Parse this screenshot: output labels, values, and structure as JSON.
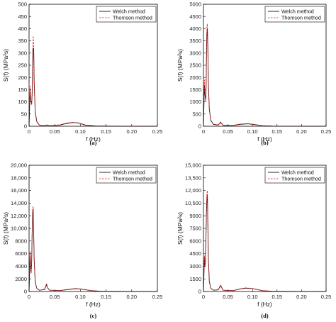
{
  "figure": {
    "colors": {
      "welch": "#111111",
      "thomson": "#e02020",
      "axis": "#000000"
    }
  },
  "chart_data": [
    {
      "type": "line",
      "caption": "(a)",
      "xlabel": "f (Hz)",
      "ylabel": "S(f) (MPa²s)",
      "xlim": [
        0,
        0.25
      ],
      "ylim": [
        0,
        500
      ],
      "xticks": [
        "0",
        "0.05",
        "0.10",
        "0.15",
        "0.20",
        "0.25"
      ],
      "yticks": [
        "0",
        "50",
        "100",
        "150",
        "200",
        "250",
        "300",
        "350",
        "400",
        "450",
        "500"
      ],
      "ytick_values": [
        0,
        50,
        100,
        150,
        200,
        250,
        300,
        350,
        400,
        450,
        500
      ],
      "legend": {
        "placement": "top-right",
        "entries": [
          "Welch method",
          "Thomson method"
        ]
      },
      "x": [
        0,
        0.002,
        0.003,
        0.004,
        0.005,
        0.006,
        0.007,
        0.008,
        0.009,
        0.01,
        0.012,
        0.015,
        0.02,
        0.03,
        0.035,
        0.04,
        0.06,
        0.075,
        0.085,
        0.095,
        0.11,
        0.13,
        0.18,
        0.25
      ],
      "series": [
        {
          "name": "Welch method",
          "style": "solid",
          "values": [
            0,
            150,
            110,
            100,
            90,
            130,
            250,
            320,
            320,
            180,
            60,
            20,
            5,
            2,
            5,
            2,
            5,
            12,
            15,
            14,
            5,
            1,
            0,
            0
          ]
        },
        {
          "name": "Thomson method",
          "style": "dashed",
          "values": [
            0,
            165,
            120,
            95,
            90,
            140,
            290,
            370,
            330,
            170,
            55,
            18,
            5,
            2,
            6,
            2,
            6,
            14,
            16,
            13,
            4,
            1,
            0,
            0
          ]
        }
      ]
    },
    {
      "type": "line",
      "caption": "(b)",
      "xlabel": "f (Hz)",
      "ylabel": "S(f) (MPa²s)",
      "xlim": [
        0,
        0.25
      ],
      "ylim": [
        0,
        5000
      ],
      "xticks": [
        "0",
        "0.05",
        "0.10",
        "0.15",
        "0.20",
        "0.25"
      ],
      "yticks": [
        "0",
        "500",
        "1000",
        "1500",
        "2000",
        "2500",
        "3000",
        "3500",
        "4000",
        "4500",
        "5000"
      ],
      "ytick_values": [
        0,
        500,
        1000,
        1500,
        2000,
        2500,
        3000,
        3500,
        4000,
        4500,
        5000
      ],
      "legend": {
        "placement": "top-right",
        "entries": [
          "Welch method",
          "Thomson method"
        ]
      },
      "x": [
        0,
        0.002,
        0.003,
        0.004,
        0.005,
        0.006,
        0.007,
        0.008,
        0.009,
        0.01,
        0.012,
        0.015,
        0.02,
        0.03,
        0.035,
        0.04,
        0.06,
        0.075,
        0.09,
        0.1,
        0.12,
        0.14,
        0.2,
        0.25
      ],
      "series": [
        {
          "name": "Welch method",
          "style": "solid",
          "values": [
            0,
            1700,
            1300,
            1200,
            1100,
            2500,
            3800,
            4000,
            3200,
            1800,
            700,
            250,
            80,
            50,
            150,
            40,
            30,
            80,
            100,
            80,
            20,
            5,
            0,
            0
          ]
        },
        {
          "name": "Thomson method",
          "style": "dashed",
          "values": [
            0,
            1900,
            1400,
            1100,
            1000,
            2700,
            4100,
            4200,
            3300,
            1700,
            650,
            230,
            80,
            60,
            180,
            45,
            35,
            90,
            110,
            85,
            25,
            5,
            0,
            0
          ]
        }
      ]
    },
    {
      "type": "line",
      "caption": "(c)",
      "xlabel": "f (Hz)",
      "ylabel": "S(f) (MPa²s)",
      "xlim": [
        0,
        0.25
      ],
      "ylim": [
        0,
        20000
      ],
      "xticks": [
        "0",
        "0.05",
        "0.10",
        "0.15",
        "0.20",
        "0.25"
      ],
      "yticks": [
        "0",
        "2000",
        "4000",
        "6000",
        "8000",
        "10,000",
        "12,000",
        "14,000",
        "16,000",
        "18,000",
        "20,000"
      ],
      "ytick_values": [
        0,
        2000,
        4000,
        6000,
        8000,
        10000,
        12000,
        14000,
        16000,
        18000,
        20000
      ],
      "legend": {
        "placement": "top-right",
        "entries": [
          "Welch method",
          "Thomson method"
        ]
      },
      "x": [
        0,
        0.002,
        0.003,
        0.004,
        0.005,
        0.006,
        0.007,
        0.008,
        0.009,
        0.01,
        0.012,
        0.015,
        0.02,
        0.03,
        0.034,
        0.036,
        0.04,
        0.06,
        0.08,
        0.09,
        0.1,
        0.12,
        0.14,
        0.2,
        0.25
      ],
      "series": [
        {
          "name": "Welch method",
          "style": "solid",
          "values": [
            0,
            6000,
            4000,
            3000,
            4500,
            9000,
            12500,
            13000,
            9000,
            5000,
            1500,
            500,
            200,
            300,
            1100,
            600,
            200,
            150,
            350,
            450,
            400,
            150,
            40,
            0,
            0
          ]
        },
        {
          "name": "Thomson method",
          "style": "dashed",
          "values": [
            0,
            6300,
            4200,
            2800,
            4800,
            9500,
            13000,
            13500,
            9200,
            4800,
            1400,
            450,
            200,
            350,
            1300,
            650,
            220,
            160,
            380,
            480,
            420,
            160,
            40,
            0,
            0
          ]
        }
      ]
    },
    {
      "type": "line",
      "caption": "(d)",
      "xlabel": "f (Hz)",
      "ylabel": "S(f) (MPa²s)",
      "xlim": [
        0,
        0.25
      ],
      "ylim": [
        0,
        15000
      ],
      "xticks": [
        "0",
        "0.05",
        "0.10",
        "0.15",
        "0.20",
        "0.25"
      ],
      "yticks": [
        "0",
        "1500",
        "3000",
        "4500",
        "6000",
        "7500",
        "9000",
        "10,500",
        "12,000",
        "13,500",
        "15,000"
      ],
      "ytick_values": [
        0,
        1500,
        3000,
        4500,
        6000,
        7500,
        9000,
        10500,
        12000,
        13500,
        15000
      ],
      "legend": {
        "placement": "top-right",
        "entries": [
          "Welch method",
          "Thomson method"
        ]
      },
      "x": [
        0,
        0.002,
        0.003,
        0.004,
        0.005,
        0.006,
        0.007,
        0.008,
        0.009,
        0.01,
        0.012,
        0.015,
        0.02,
        0.03,
        0.035,
        0.04,
        0.06,
        0.075,
        0.085,
        0.1,
        0.12,
        0.14,
        0.2,
        0.25
      ],
      "series": [
        {
          "name": "Welch method",
          "style": "solid",
          "values": [
            0,
            4000,
            3000,
            3500,
            6000,
            9000,
            11000,
            11500,
            8000,
            4000,
            1200,
            400,
            150,
            200,
            700,
            150,
            100,
            300,
            400,
            350,
            100,
            30,
            0,
            0
          ]
        },
        {
          "name": "Thomson method",
          "style": "dashed",
          "values": [
            0,
            4300,
            3100,
            3400,
            6300,
            9500,
            11700,
            12000,
            8200,
            3800,
            1100,
            380,
            150,
            220,
            800,
            160,
            110,
            320,
            430,
            360,
            110,
            30,
            0,
            0
          ]
        }
      ]
    }
  ]
}
